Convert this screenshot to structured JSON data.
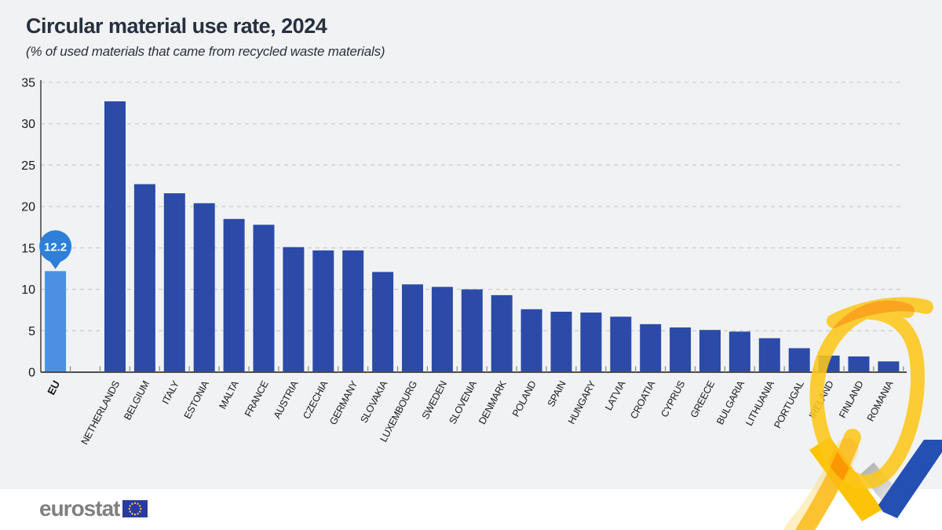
{
  "header": {
    "title": "Circular material use rate, 2024",
    "subtitle": "(% of used materials that came from recycled waste materials)"
  },
  "chart_data": {
    "type": "bar",
    "title": "Circular material use rate, 2024",
    "subtitle": "(% of used materials that came from recycled waste materials)",
    "unit": "% of used materials",
    "categories": [
      "EU",
      "NETHERLANDS",
      "BELGIUM",
      "ITALY",
      "ESTONIA",
      "MALTA",
      "FRANCE",
      "AUSTRIA",
      "CZECHIA",
      "GERMANY",
      "SLOVAKIA",
      "LUXEMBOURG",
      "SWEDEN",
      "SLOVENIA",
      "DENMARK",
      "POLAND",
      "SPAIN",
      "HUNGARY",
      "LATVIA",
      "CROATIA",
      "CYPRUS",
      "GREECE",
      "BULGARIA",
      "LITHUANIA",
      "PORTUGAL",
      "IRELAND",
      "FINLAND",
      "ROMANIA"
    ],
    "values": [
      12.2,
      32.7,
      22.7,
      21.6,
      20.4,
      18.5,
      17.8,
      15.1,
      14.7,
      14.7,
      12.1,
      10.6,
      10.3,
      10.0,
      9.3,
      7.6,
      7.3,
      7.2,
      6.7,
      5.8,
      5.4,
      5.1,
      4.9,
      4.1,
      2.9,
      2.0,
      1.9,
      1.3
    ],
    "ylim": [
      0,
      35
    ],
    "yticks": [
      0,
      5,
      10,
      15,
      20,
      25,
      30,
      35
    ],
    "grid": "horizontal-dashed",
    "legend": "none",
    "eu_annotation": {
      "label": "12.2",
      "category": "EU"
    },
    "circled_categories": [
      "IRELAND",
      "FINLAND",
      "ROMANIA"
    ]
  },
  "footer": {
    "logo_text": "eurostat"
  },
  "colors": {
    "background": "#f1f2f3",
    "bar": "#2c4ba8",
    "eu_bar": "#4b90e2",
    "callout": "#2e7fd7",
    "callout_text": "#ffffff",
    "title_text": "#26303f",
    "axis_text": "#16191d",
    "gridline": "#c9cbcd",
    "axis_line": "#4c4c4c",
    "tick": "#8e8e8e",
    "footer_bg": "#ffffff",
    "logo_gray": "#7f7f7f",
    "flag_blue": "#2a3b9e",
    "star_yellow": "#ffd617",
    "marker_yellow": "#fdc71a",
    "check_yellow": "#fdc407",
    "check_blue": "#2450b4"
  }
}
